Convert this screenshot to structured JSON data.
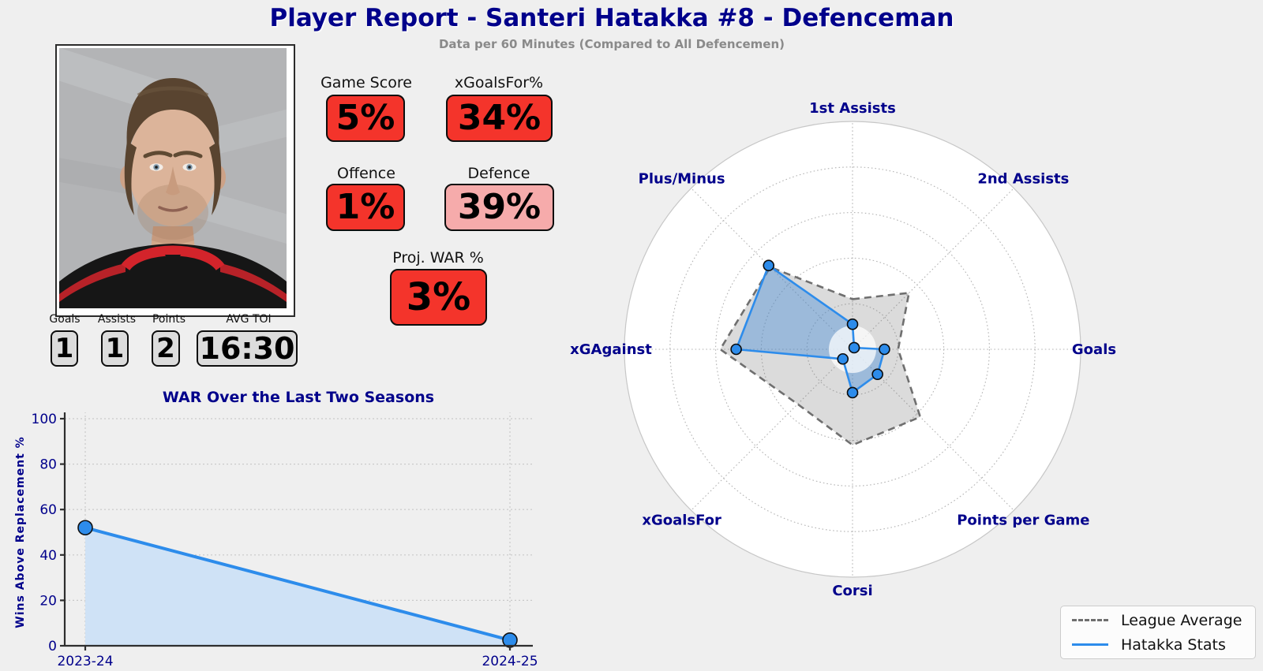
{
  "header": {
    "title": "Player Report - Santeri Hatakka #8 - Defenceman",
    "subtitle": "Data per 60 Minutes (Compared to All Defencemen)"
  },
  "colors": {
    "background": "#efefef",
    "navy": "#00008b",
    "red": "#f4342b",
    "pink": "#f6abab",
    "box_gray": "#dcdcdc",
    "blue": "#2d8ceb",
    "blue_fill": "#cfe2f6",
    "gray_dashed": "#6f6f6f"
  },
  "percentile_boxes": [
    {
      "label": "Game Score",
      "value": "5%",
      "color": "#f4342b"
    },
    {
      "label": "xGoalsFor%",
      "value": "34%",
      "color": "#f4342b"
    },
    {
      "label": "Offence",
      "value": "1%",
      "color": "#f4342b"
    },
    {
      "label": "Defence",
      "value": "39%",
      "color": "#f6abab"
    },
    {
      "label": "Proj. WAR %",
      "value": "3%",
      "color": "#f4342b"
    }
  ],
  "summary_stats": [
    {
      "label": "Goals",
      "value": "1"
    },
    {
      "label": "Assists",
      "value": "1"
    },
    {
      "label": "Points",
      "value": "2"
    },
    {
      "label": "AVG TOI",
      "value": "16:30"
    }
  ],
  "chart_data": [
    {
      "type": "area",
      "title": "WAR Over the Last Two Seasons",
      "x": [
        "2023-24",
        "2024-25"
      ],
      "values": [
        52,
        2.5
      ],
      "xlabel": "",
      "ylabel": "Wins Above Replacement %",
      "ylim": [
        0,
        100
      ],
      "yticks": [
        0,
        20,
        40,
        60,
        80,
        100
      ],
      "grid": true,
      "line_color": "#2d8ceb",
      "fill_color": "#cfe2f6"
    },
    {
      "type": "radar",
      "categories": [
        "1st Assists",
        "2nd Assists",
        "Goals",
        "Points per Game",
        "Corsi",
        "xGoalsFor",
        "xGAgainst",
        "Plus/Minus"
      ],
      "series": [
        {
          "name": "League Average",
          "values": [
            22,
            35,
            20,
            42,
            42,
            34,
            58,
            51
          ],
          "style": "dashed",
          "color": "#6f6f6f",
          "fill": "rgba(125,125,125,0.28)"
        },
        {
          "name": "Hatakka Stats",
          "values": [
            11,
            1,
            14,
            15.5,
            19,
            6,
            51,
            52
          ],
          "style": "solid",
          "color": "#2d8ceb",
          "fill": "rgba(68,140,216,0.42)"
        }
      ],
      "rmax": 100,
      "rings": [
        20,
        40,
        60,
        80,
        100
      ],
      "grid": true,
      "legend_position": "lower right"
    }
  ],
  "legend": {
    "items": [
      {
        "label": "League Average"
      },
      {
        "label": "Hatakka Stats"
      }
    ]
  }
}
